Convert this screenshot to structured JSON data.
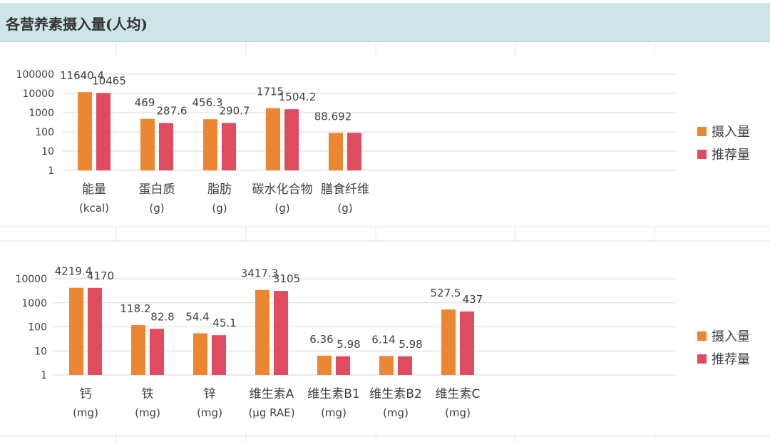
{
  "header": {
    "title": "各营养素摄入量(人均)"
  },
  "colors": {
    "intake": "#ed8633",
    "recommended": "#e04b5f",
    "header_bg": "#cde5e6",
    "grid": "#d9d9d9"
  },
  "legend": {
    "intake": "摄入量",
    "recommended": "推荐量"
  },
  "chart_data": [
    {
      "type": "bar",
      "log_scale": true,
      "ylim": [
        1,
        100000
      ],
      "yticks": [
        "1",
        "10",
        "100",
        "1000",
        "10000",
        "100000"
      ],
      "grid": true,
      "legend_position": "right",
      "categories": [
        {
          "name": "能量",
          "unit": "(kcal)"
        },
        {
          "name": "蛋白质",
          "unit": "(g)"
        },
        {
          "name": "脂肪",
          "unit": "(g)"
        },
        {
          "name": "碳水化合物",
          "unit": "(g)"
        },
        {
          "name": "膳食纤维",
          "unit": "(g)"
        }
      ],
      "series": [
        {
          "name": "摄入量",
          "values": [
            11640.4,
            469,
            456.3,
            1715,
            88.692
          ],
          "labels": [
            "11640.4",
            "469",
            "456.3",
            "1715",
            "88.692"
          ]
        },
        {
          "name": "推荐量",
          "values": [
            10465,
            287.6,
            290.7,
            1504.2,
            88.692
          ],
          "labels": [
            "10465",
            "287.6",
            "290.7",
            "1504.2",
            ""
          ]
        }
      ]
    },
    {
      "type": "bar",
      "log_scale": true,
      "ylim": [
        1,
        10000
      ],
      "yticks": [
        "1",
        "10",
        "100",
        "1000",
        "10000"
      ],
      "grid": true,
      "legend_position": "right",
      "categories": [
        {
          "name": "钙",
          "unit": "(mg)"
        },
        {
          "name": "铁",
          "unit": "(mg)"
        },
        {
          "name": "锌",
          "unit": "(mg)"
        },
        {
          "name": "维生素A",
          "unit": "(μg RAE)"
        },
        {
          "name": "维生素B1",
          "unit": "(mg)"
        },
        {
          "name": "维生素B2",
          "unit": "(mg)"
        },
        {
          "name": "维生素C",
          "unit": "(mg)"
        }
      ],
      "series": [
        {
          "name": "摄入量",
          "values": [
            4219.4,
            118.2,
            54.4,
            3417.3,
            6.36,
            6.14,
            527.5
          ],
          "labels": [
            "4219.4",
            "118.2",
            "54.4",
            "3417.3",
            "6.36",
            "6.14",
            "527.5"
          ]
        },
        {
          "name": "推荐量",
          "values": [
            4170,
            82.8,
            45.1,
            3105,
            5.98,
            5.98,
            437
          ],
          "labels": [
            "4170",
            "82.8",
            "45.1",
            "3105",
            "5.98",
            "5.98",
            "437"
          ]
        }
      ]
    }
  ]
}
